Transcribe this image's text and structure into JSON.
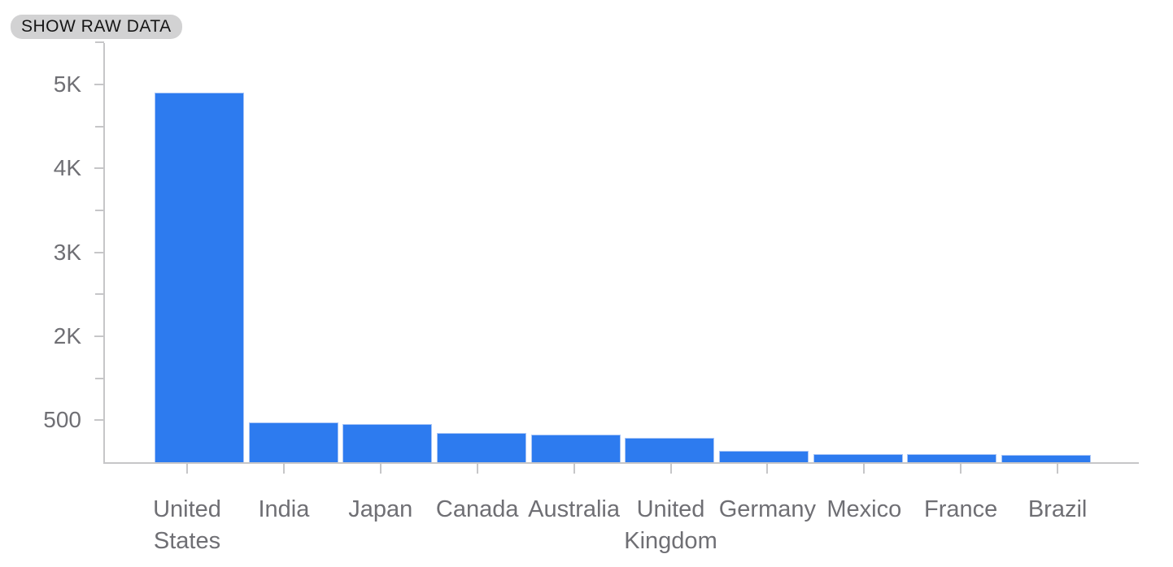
{
  "toolbar": {
    "show_raw_data_label": "SHOW RAW DATA"
  },
  "chart_data": {
    "type": "bar",
    "categories": [
      "United States",
      "India",
      "Japan",
      "Canada",
      "Australia",
      "United Kingdom",
      "Germany",
      "Mexico",
      "France",
      "Brazil"
    ],
    "values": [
      4900,
      475,
      450,
      350,
      330,
      290,
      140,
      95,
      93,
      85
    ],
    "y_axis": {
      "tick_labels": [
        "5K",
        "4K",
        "3K",
        "2K",
        "500"
      ],
      "tick_values": [
        5000,
        4000,
        3000,
        2000,
        500
      ],
      "baseline_value": 0,
      "minor_ticks": true,
      "grid": false
    },
    "xlabel": "",
    "ylabel": "",
    "legend": "none"
  },
  "colors": {
    "background": "#ffffff",
    "bar": "#2d7bef",
    "bar_border": "#a9c6f7",
    "axis_line": "#c6c6c8",
    "tick_label": "#6f6f74",
    "button_bg": "#d2d2d3",
    "button_text": "#161616"
  }
}
